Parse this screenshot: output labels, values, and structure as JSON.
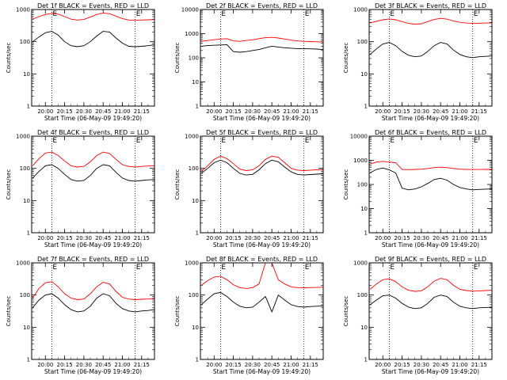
{
  "figure": {
    "ylabel": "Counts/sec",
    "xlabel": "Start Time (06-May-09 19:49:20)",
    "x_ticks": [
      "20:00",
      "20:15",
      "20:30",
      "20:45",
      "21:00",
      "21:15"
    ],
    "series_colors": {
      "events": "#000000",
      "lld": "#ff0000"
    },
    "vertical_markers_label": "E",
    "grid": false
  },
  "chart_data": [
    {
      "type": "line",
      "title": "Det 1f BLACK = Events, RED = LLD",
      "y_scale": "log",
      "ylim": [
        1,
        1000
      ],
      "y_ticks": [
        "1",
        "10",
        "100",
        "1000"
      ],
      "x": [
        "19:50",
        "19:55",
        "20:00",
        "20:05",
        "20:10",
        "20:15",
        "20:20",
        "20:25",
        "20:30",
        "20:35",
        "20:40",
        "20:45",
        "20:50",
        "20:55",
        "21:00",
        "21:05",
        "21:10",
        "21:15",
        "21:20",
        "21:25"
      ],
      "series": [
        {
          "values": [
            100,
            140,
            190,
            210,
            160,
            100,
            75,
            70,
            75,
            100,
            150,
            210,
            200,
            130,
            90,
            72,
            70,
            72,
            75,
            80
          ]
        },
        {
          "values": [
            500,
            600,
            700,
            760,
            720,
            600,
            500,
            470,
            490,
            580,
            700,
            780,
            740,
            620,
            520,
            470,
            460,
            470,
            480,
            490
          ]
        }
      ],
      "markers": [
        "20:05",
        "21:10"
      ]
    },
    {
      "type": "line",
      "title": "Det 2f BLACK = Events, RED = LLD",
      "y_scale": "log",
      "ylim": [
        1,
        10000
      ],
      "y_ticks": [
        "1",
        "10",
        "100",
        "1000",
        "10000"
      ],
      "x": [
        "19:50",
        "19:55",
        "20:00",
        "20:05",
        "20:10",
        "20:15",
        "20:20",
        "20:25",
        "20:30",
        "20:35",
        "20:40",
        "20:45",
        "20:50",
        "20:55",
        "21:00",
        "21:05",
        "21:10",
        "21:15",
        "21:20",
        "21:25"
      ],
      "series": [
        {
          "values": [
            300,
            320,
            330,
            340,
            350,
            180,
            170,
            180,
            200,
            220,
            260,
            300,
            280,
            260,
            250,
            240,
            240,
            235,
            230,
            220
          ]
        },
        {
          "values": [
            480,
            520,
            560,
            600,
            620,
            500,
            480,
            520,
            560,
            620,
            680,
            700,
            660,
            600,
            540,
            500,
            480,
            470,
            460,
            450
          ]
        }
      ],
      "markers": [
        "20:05",
        "21:10"
      ]
    },
    {
      "type": "line",
      "title": "Det 3f BLACK = Events, RED = LLD",
      "y_scale": "log",
      "ylim": [
        1,
        1000
      ],
      "y_ticks": [
        "1",
        "10",
        "100",
        "1000"
      ],
      "x": [
        "19:50",
        "19:55",
        "20:00",
        "20:05",
        "20:10",
        "20:15",
        "20:20",
        "20:25",
        "20:30",
        "20:35",
        "20:40",
        "20:45",
        "20:50",
        "20:55",
        "21:00",
        "21:05",
        "21:10",
        "21:15",
        "21:20",
        "21:25"
      ],
      "series": [
        {
          "values": [
            40,
            60,
            85,
            95,
            75,
            50,
            38,
            34,
            36,
            50,
            75,
            95,
            85,
            55,
            40,
            34,
            32,
            34,
            35,
            36
          ]
        },
        {
          "values": [
            380,
            430,
            480,
            510,
            480,
            420,
            370,
            350,
            360,
            420,
            490,
            530,
            500,
            440,
            400,
            380,
            370,
            375,
            380,
            385
          ]
        }
      ],
      "markers": [
        "20:05",
        "21:10"
      ]
    },
    {
      "type": "line",
      "title": "Det 4f BLACK = Events, RED = LLD",
      "y_scale": "log",
      "ylim": [
        1,
        1000
      ],
      "y_ticks": [
        "1",
        "10",
        "100",
        "1000"
      ],
      "x": [
        "19:50",
        "19:55",
        "20:00",
        "20:05",
        "20:10",
        "20:15",
        "20:20",
        "20:25",
        "20:30",
        "20:35",
        "20:40",
        "20:45",
        "20:50",
        "20:55",
        "21:00",
        "21:05",
        "21:10",
        "21:15",
        "21:20",
        "21:25"
      ],
      "series": [
        {
          "values": [
            50,
            80,
            120,
            130,
            100,
            65,
            45,
            40,
            42,
            60,
            100,
            130,
            120,
            75,
            50,
            42,
            40,
            42,
            44,
            45
          ]
        },
        {
          "values": [
            120,
            200,
            300,
            320,
            250,
            170,
            120,
            110,
            115,
            160,
            250,
            320,
            290,
            190,
            130,
            115,
            110,
            115,
            118,
            120
          ]
        }
      ],
      "markers": [
        "20:05",
        "21:10"
      ]
    },
    {
      "type": "line",
      "title": "Det 5f BLACK = Events, RED = LLD",
      "y_scale": "log",
      "ylim": [
        1,
        1000
      ],
      "y_ticks": [
        "1",
        "10",
        "100",
        "1000"
      ],
      "x": [
        "19:50",
        "19:55",
        "20:00",
        "20:05",
        "20:10",
        "20:15",
        "20:20",
        "20:25",
        "20:30",
        "20:35",
        "20:40",
        "20:45",
        "20:50",
        "20:55",
        "21:00",
        "21:05",
        "21:10",
        "21:15",
        "21:20",
        "21:25"
      ],
      "series": [
        {
          "values": [
            70,
            100,
            150,
            180,
            150,
            100,
            70,
            62,
            65,
            90,
            140,
            180,
            160,
            110,
            78,
            65,
            62,
            64,
            66,
            68
          ]
        },
        {
          "values": [
            80,
            120,
            190,
            240,
            200,
            140,
            95,
            85,
            90,
            120,
            190,
            240,
            220,
            150,
            100,
            88,
            85,
            88,
            90,
            92
          ]
        }
      ],
      "markers": [
        "20:05",
        "21:10"
      ]
    },
    {
      "type": "line",
      "title": "Det 6f BLACK = Events, RED = LLD",
      "y_scale": "log",
      "ylim": [
        1,
        10000
      ],
      "y_ticks": [
        "1",
        "10",
        "100",
        "1000",
        "10000"
      ],
      "x": [
        "19:50",
        "19:55",
        "20:00",
        "20:05",
        "20:10",
        "20:15",
        "20:20",
        "20:25",
        "20:30",
        "20:35",
        "20:40",
        "20:45",
        "20:50",
        "20:55",
        "21:00",
        "21:05",
        "21:10",
        "21:15",
        "21:20",
        "21:25"
      ],
      "series": [
        {
          "values": [
            300,
            420,
            480,
            400,
            300,
            70,
            60,
            65,
            80,
            110,
            160,
            180,
            150,
            100,
            75,
            65,
            60,
            62,
            64,
            65
          ]
        },
        {
          "values": [
            700,
            850,
            900,
            850,
            800,
            420,
            410,
            420,
            430,
            460,
            500,
            520,
            500,
            460,
            430,
            420,
            415,
            418,
            420,
            420
          ]
        }
      ],
      "markers": [
        "20:05",
        "21:10"
      ]
    },
    {
      "type": "line",
      "title": "Det 7f BLACK = Events, RED = LLD",
      "y_scale": "log",
      "ylim": [
        1,
        1000
      ],
      "y_ticks": [
        "1",
        "10",
        "100",
        "1000"
      ],
      "x": [
        "19:50",
        "19:55",
        "20:00",
        "20:05",
        "20:10",
        "20:15",
        "20:20",
        "20:25",
        "20:30",
        "20:35",
        "20:40",
        "20:45",
        "20:50",
        "20:55",
        "21:00",
        "21:05",
        "21:10",
        "21:15",
        "21:20",
        "21:25"
      ],
      "series": [
        {
          "values": [
            40,
            70,
            100,
            110,
            80,
            50,
            35,
            30,
            32,
            45,
            80,
            110,
            95,
            55,
            38,
            32,
            30,
            32,
            33,
            35
          ]
        },
        {
          "values": [
            80,
            160,
            240,
            260,
            180,
            110,
            80,
            72,
            75,
            110,
            180,
            250,
            220,
            130,
            85,
            75,
            72,
            74,
            75,
            78
          ]
        }
      ],
      "markers": [
        "20:05",
        "21:10"
      ]
    },
    {
      "type": "line",
      "title": "Det 8f BLACK = Events, RED = LLD",
      "y_scale": "log",
      "ylim": [
        1,
        1000
      ],
      "y_ticks": [
        "1",
        "10",
        "100",
        "1000"
      ],
      "x": [
        "19:50",
        "19:55",
        "20:00",
        "20:05",
        "20:10",
        "20:15",
        "20:20",
        "20:25",
        "20:30",
        "20:35",
        "20:40",
        "20:45",
        "20:50",
        "20:55",
        "21:00",
        "21:05",
        "21:10",
        "21:15",
        "21:20",
        "21:25"
      ],
      "series": [
        {
          "values": [
            50,
            75,
            110,
            120,
            90,
            60,
            45,
            40,
            42,
            60,
            90,
            30,
            100,
            70,
            50,
            44,
            42,
            44,
            45,
            46
          ]
        },
        {
          "values": [
            200,
            280,
            360,
            380,
            300,
            210,
            170,
            160,
            170,
            220,
            1000,
            1000,
            300,
            220,
            180,
            170,
            168,
            170,
            172,
            175
          ]
        }
      ],
      "markers": [
        "20:05",
        "21:10"
      ]
    },
    {
      "type": "line",
      "title": "Det 9f BLACK = Events, RED = LLD",
      "y_scale": "log",
      "ylim": [
        1,
        1000
      ],
      "y_ticks": [
        "1",
        "10",
        "100",
        "1000"
      ],
      "x": [
        "19:50",
        "19:55",
        "20:00",
        "20:05",
        "20:10",
        "20:15",
        "20:20",
        "20:25",
        "20:30",
        "20:35",
        "20:40",
        "20:45",
        "20:50",
        "20:55",
        "21:00",
        "21:05",
        "21:10",
        "21:15",
        "21:20",
        "21:25"
      ],
      "series": [
        {
          "values": [
            50,
            70,
            95,
            100,
            80,
            55,
            42,
            38,
            40,
            55,
            85,
            100,
            90,
            60,
            45,
            40,
            38,
            40,
            41,
            42
          ]
        },
        {
          "values": [
            150,
            220,
            300,
            320,
            260,
            180,
            140,
            130,
            135,
            180,
            270,
            330,
            300,
            200,
            150,
            138,
            132,
            135,
            138,
            140
          ]
        }
      ],
      "markers": [
        "20:05",
        "21:10"
      ]
    }
  ]
}
